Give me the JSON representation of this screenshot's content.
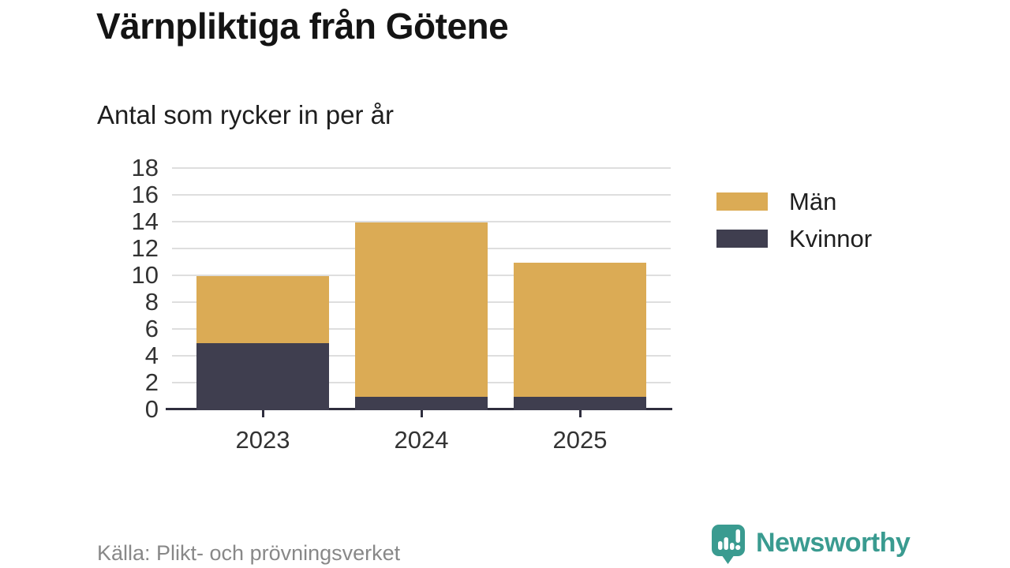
{
  "header": {
    "title": "Värnpliktiga från Götene",
    "subtitle": "Antal som rycker in per år"
  },
  "chart_data": {
    "type": "bar",
    "stacked": true,
    "title": "Värnpliktiga från Götene",
    "subtitle": "Antal som rycker in per år",
    "categories": [
      "2023",
      "2024",
      "2025"
    ],
    "series": [
      {
        "name": "Män",
        "color": "#dbab55",
        "values": [
          5,
          13,
          10
        ]
      },
      {
        "name": "Kvinnor",
        "color": "#3f3e4f",
        "values": [
          5,
          1,
          1
        ]
      }
    ],
    "stack_bottom_to_top": [
      "Kvinnor",
      "Män"
    ],
    "totals": [
      10,
      14,
      11
    ],
    "xlabel": "",
    "ylabel": "",
    "ylim": [
      0,
      18
    ],
    "yticks": [
      0,
      2,
      4,
      6,
      8,
      10,
      12,
      14,
      16,
      18
    ],
    "grid": "horizontal",
    "legend_position": "right"
  },
  "legend": {
    "items": [
      {
        "label": "Män",
        "color": "#dbab55"
      },
      {
        "label": "Kvinnor",
        "color": "#3f3e4f"
      }
    ]
  },
  "footer": {
    "source": "Källa: Plikt- och prövningsverket",
    "brand": "Newsworthy"
  },
  "colors": {
    "men_gold": "#dbab55",
    "women_dark": "#3f3e4f",
    "gridline": "#dedede",
    "axis": "#2f2e3e",
    "tick_text": "#333333",
    "brand_teal": "#3a9b90",
    "muted_text": "#888888"
  }
}
